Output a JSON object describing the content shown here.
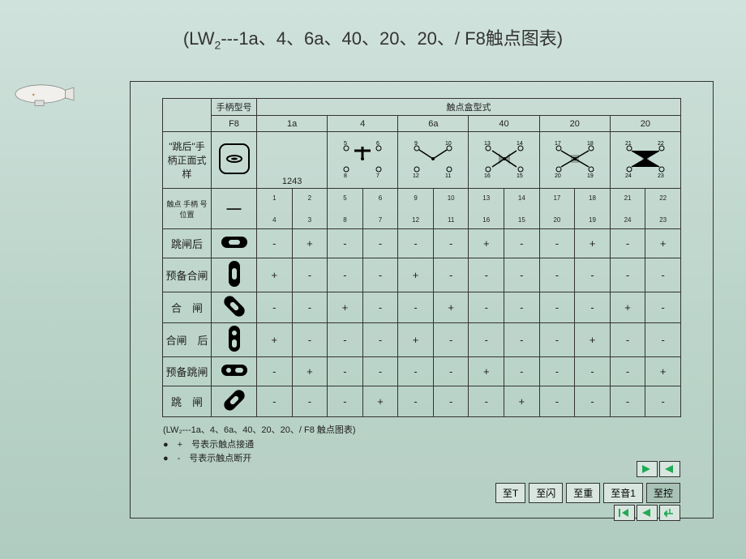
{
  "title_prefix": "(LW",
  "title_sub": "2",
  "title_suffix": "---1a、4、6a、40、20、20、/ F8触点图表)",
  "header": {
    "handle_model": "手柄型号",
    "contact_box": "触点盒型式",
    "models": [
      "F8",
      "1a",
      "4",
      "6a",
      "40",
      "20",
      "20"
    ]
  },
  "row1_label": "\"跳后\"手柄正面式样",
  "row2_label": "触点 手柄 号 位置",
  "num_top": [
    "1   2",
    "5   6",
    "9   10",
    "13  14",
    "17  18",
    "21  22"
  ],
  "num_bot": [
    "4   3",
    "8   7",
    "12  11",
    "16  15",
    "20  19",
    "24  23"
  ],
  "tiny_top": [
    "1",
    "2",
    "5",
    "6",
    "9",
    "10",
    "13",
    "14",
    "17",
    "18",
    "21",
    "22"
  ],
  "tiny_bot": [
    "4",
    "3",
    "8",
    "7",
    "12",
    "11",
    "16",
    "15",
    "20",
    "19",
    "24",
    "23"
  ],
  "rows": [
    {
      "label": "跳闸后",
      "handle": "horiz-slot",
      "vals": [
        "-",
        "+",
        "-",
        "-",
        "-",
        "-",
        "+",
        "-",
        "-",
        "+",
        "-",
        "+"
      ]
    },
    {
      "label": "预备合闸",
      "handle": "vert-slot",
      "vals": [
        "+",
        "-",
        "-",
        "-",
        "+",
        "-",
        "-",
        "-",
        "-",
        "-",
        "-",
        "-"
      ]
    },
    {
      "label": "合　闸",
      "handle": "diag1",
      "vals": [
        "-",
        "-",
        "+",
        "-",
        "-",
        "+",
        "-",
        "-",
        "-",
        "-",
        "+",
        "-"
      ]
    },
    {
      "label": "合闸　后",
      "handle": "vert-dot",
      "vals": [
        "+",
        "-",
        "-",
        "-",
        "+",
        "-",
        "-",
        "-",
        "-",
        "+",
        "-",
        "-"
      ]
    },
    {
      "label": "预备跳闸",
      "handle": "horiz-dot",
      "vals": [
        "-",
        "+",
        "-",
        "-",
        "-",
        "-",
        "+",
        "-",
        "-",
        "-",
        "-",
        "+"
      ]
    },
    {
      "label": "跳　闸",
      "handle": "diag2",
      "vals": [
        "-",
        "-",
        "-",
        "+",
        "-",
        "-",
        "-",
        "+",
        "-",
        "-",
        "-",
        "-"
      ]
    }
  ],
  "footer": {
    "caption": "(LW₂---1a、4、6a、40、20、20、/ F8 触点图表)",
    "note1": "●　+　号表示触点接通",
    "note2": "●　-　号表示触点断开"
  },
  "nav": [
    "至T",
    "至闪",
    "至重",
    "至音1",
    "至控"
  ],
  "colors": {
    "bg": "#c3d9d0",
    "border": "#333333",
    "btn": "#d8e6df"
  }
}
